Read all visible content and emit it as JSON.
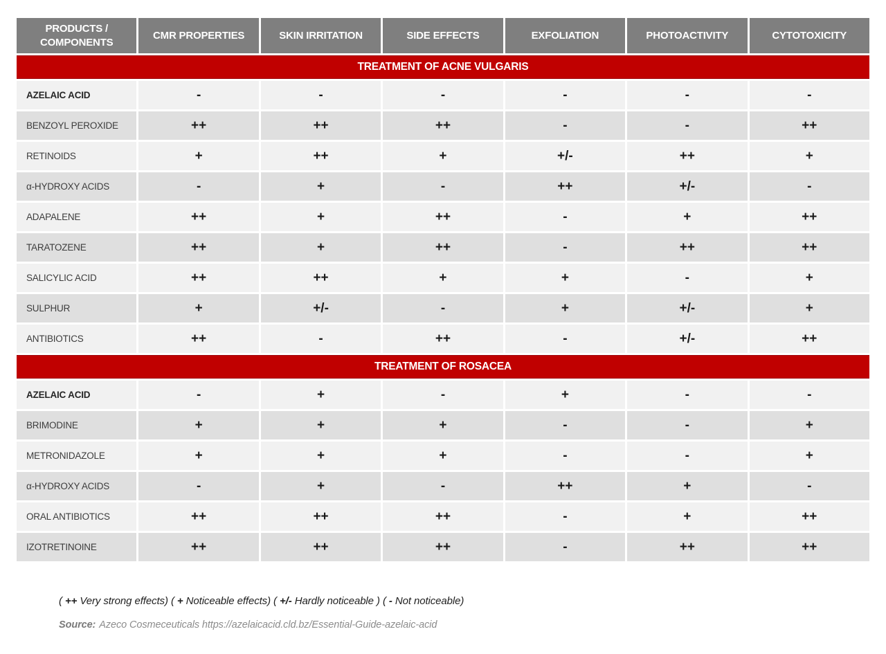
{
  "chart_data": {
    "type": "table",
    "columns": [
      "PRODUCTS / COMPONENTS",
      "CMR PROPERTIES",
      "SKIN IRRITATION",
      "SIDE EFFECTS",
      "EXFOLIATION",
      "PHOTOACTIVITY",
      "CYTOTOXICITY"
    ],
    "sections": [
      {
        "title": "TREATMENT OF ACNE VULGARIS",
        "rows": [
          {
            "product": "AZELAIC ACID",
            "bold": true,
            "values": [
              "-",
              "-",
              "-",
              "-",
              "-",
              "-"
            ]
          },
          {
            "product": "BENZOYL PEROXIDE",
            "bold": false,
            "values": [
              "++",
              "++",
              "++",
              "-",
              "-",
              "++"
            ]
          },
          {
            "product": "RETINOIDS",
            "bold": false,
            "values": [
              "+",
              "++",
              "+",
              "+/-",
              "++",
              "+"
            ]
          },
          {
            "product": "α-HYDROXY ACIDS",
            "bold": false,
            "values": [
              "-",
              "+",
              "-",
              "++",
              "+/-",
              "-"
            ]
          },
          {
            "product": "ADAPALENE",
            "bold": false,
            "values": [
              "++",
              "+",
              "++",
              "-",
              "+",
              "++"
            ]
          },
          {
            "product": "TARATOZENE",
            "bold": false,
            "values": [
              "++",
              "+",
              "++",
              "-",
              "++",
              "++"
            ]
          },
          {
            "product": "SALICYLIC ACID",
            "bold": false,
            "values": [
              "++",
              "++",
              "+",
              "+",
              "-",
              "+"
            ]
          },
          {
            "product": "SULPHUR",
            "bold": false,
            "values": [
              "+",
              "+/-",
              "-",
              "+",
              "+/-",
              "+"
            ]
          },
          {
            "product": "ANTIBIOTICS",
            "bold": false,
            "values": [
              "++",
              "-",
              "++",
              "-",
              "+/-",
              "++"
            ]
          }
        ]
      },
      {
        "title": "TREATMENT OF ROSACEA",
        "rows": [
          {
            "product": "AZELAIC ACID",
            "bold": true,
            "values": [
              "-",
              "+",
              "-",
              "+",
              "-",
              "-"
            ]
          },
          {
            "product": "BRIMODINE",
            "bold": false,
            "values": [
              "+",
              "+",
              "+",
              "-",
              "-",
              "+"
            ]
          },
          {
            "product": "METRONIDAZOLE",
            "bold": false,
            "values": [
              "+",
              "+",
              "+",
              "-",
              "-",
              "+"
            ]
          },
          {
            "product": "α-HYDROXY ACIDS",
            "bold": false,
            "values": [
              "-",
              "+",
              "-",
              "++",
              "+",
              "-"
            ]
          },
          {
            "product": "ORAL ANTIBIOTICS",
            "bold": false,
            "values": [
              "++",
              "++",
              "++",
              "-",
              "+",
              "++"
            ]
          },
          {
            "product": "IZOTRETINOINE",
            "bold": false,
            "values": [
              "++",
              "++",
              "++",
              "-",
              "++",
              "++"
            ]
          }
        ]
      }
    ]
  },
  "legend": {
    "parts": [
      {
        "symbol": "++",
        "label": "Very strong effects"
      },
      {
        "symbol": "+",
        "label": "Noticeable effects"
      },
      {
        "symbol": "+/-",
        "label": "Hardly noticeable "
      },
      {
        "symbol": "-",
        "label": "Not noticeable"
      }
    ]
  },
  "source": {
    "label": "Source:",
    "text": "Azeco Cosmeceuticals https://azelaicacid.cld.bz/Essential-Guide-azelaic-acid"
  },
  "colors": {
    "header_bg": "#7f7f7f",
    "header_text": "#ffffff",
    "band_bg": "#c00000",
    "band_text": "#ffffff",
    "row_light": "#f1f1f1",
    "row_dark": "#dfdfdf"
  }
}
